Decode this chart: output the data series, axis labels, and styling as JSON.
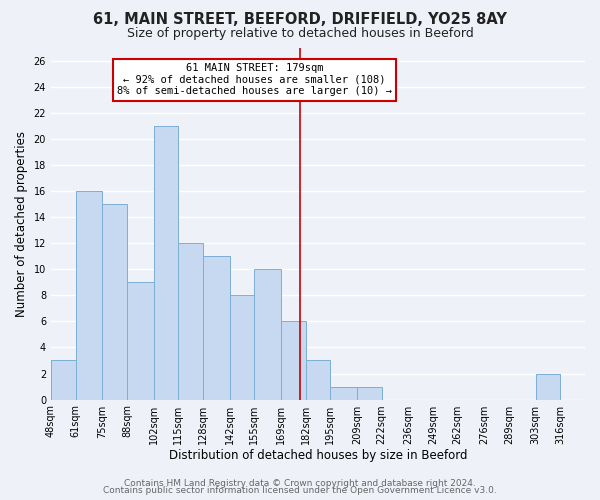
{
  "title": "61, MAIN STREET, BEEFORD, DRIFFIELD, YO25 8AY",
  "subtitle": "Size of property relative to detached houses in Beeford",
  "xlabel": "Distribution of detached houses by size in Beeford",
  "ylabel": "Number of detached properties",
  "bin_labels": [
    "48sqm",
    "61sqm",
    "75sqm",
    "88sqm",
    "102sqm",
    "115sqm",
    "128sqm",
    "142sqm",
    "155sqm",
    "169sqm",
    "182sqm",
    "195sqm",
    "209sqm",
    "222sqm",
    "236sqm",
    "249sqm",
    "262sqm",
    "276sqm",
    "289sqm",
    "303sqm",
    "316sqm"
  ],
  "bin_edges": [
    48,
    61,
    75,
    88,
    102,
    115,
    128,
    142,
    155,
    169,
    182,
    195,
    209,
    222,
    236,
    249,
    262,
    276,
    289,
    303,
    316,
    329
  ],
  "counts": [
    3,
    16,
    15,
    9,
    21,
    12,
    11,
    8,
    10,
    6,
    3,
    1,
    1,
    0,
    0,
    0,
    0,
    0,
    0,
    2,
    0
  ],
  "property_value": 179,
  "bar_color": "#c6d9f0",
  "bar_edge_color": "#7bafd4",
  "vline_color": "#cc0000",
  "annotation_line1": "61 MAIN STREET: 179sqm",
  "annotation_line2": "← 92% of detached houses are smaller (108)",
  "annotation_line3": "8% of semi-detached houses are larger (10) →",
  "annotation_box_color": "#ffffff",
  "annotation_box_edge": "#cc0000",
  "ylim": [
    0,
    27
  ],
  "yticks": [
    0,
    2,
    4,
    6,
    8,
    10,
    12,
    14,
    16,
    18,
    20,
    22,
    24,
    26
  ],
  "footer_line1": "Contains HM Land Registry data © Crown copyright and database right 2024.",
  "footer_line2": "Contains public sector information licensed under the Open Government Licence v3.0.",
  "bg_color": "#eef2f8",
  "grid_color": "#ffffff",
  "title_fontsize": 10.5,
  "subtitle_fontsize": 9,
  "axis_label_fontsize": 8.5,
  "tick_fontsize": 7,
  "annotation_fontsize": 7.5,
  "footer_fontsize": 6.5
}
